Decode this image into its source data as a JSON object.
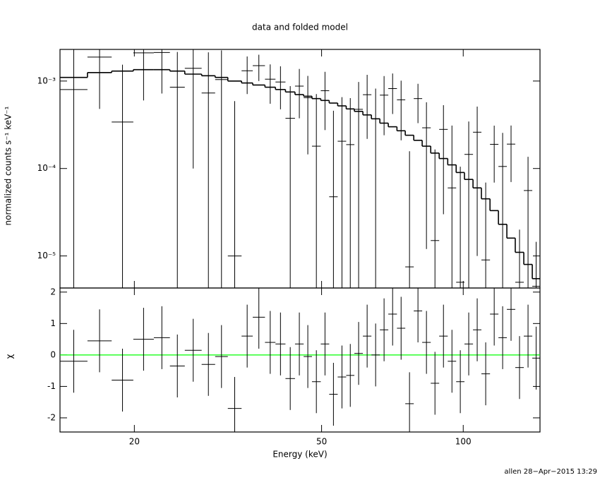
{
  "chart_data": {
    "type": "spectrum",
    "title": "data and folded model",
    "xlabel": "Energy (keV)",
    "xscale": "log",
    "xlim": [
      13.9,
      145.6
    ],
    "xticks": [
      20,
      50,
      100
    ],
    "bins": [
      13.9,
      15.9,
      17.9,
      19.9,
      22.0,
      23.8,
      25.6,
      27.8,
      29.7,
      31.6,
      33.8,
      35.7,
      37.9,
      39.9,
      41.9,
      43.9,
      45.8,
      47.7,
      49.8,
      51.9,
      54.1,
      56.4,
      58.7,
      61.2,
      63.8,
      66.5,
      69.3,
      72.3,
      75.3,
      78.5,
      81.8,
      85.3,
      88.9,
      92.7,
      96.6,
      100.6,
      104.9,
      109.3,
      114.0,
      118.8,
      123.8,
      129.0,
      134.5,
      140.2,
      145.6
    ],
    "top": {
      "ylabel": "normalized counts s⁻¹ keV⁻¹",
      "yscale": "log",
      "ylim": [
        4.3e-06,
        0.0023
      ],
      "yticks": [
        {
          "value": 0.001,
          "label": "10⁻³"
        },
        {
          "value": 0.0001,
          "label": "10⁻⁴"
        },
        {
          "value": 1e-05,
          "label": "10⁻⁵"
        }
      ],
      "rate": [
        0.0008,
        0.00188,
        0.00034,
        0.0021,
        0.00212,
        0.00085,
        0.0014,
        0.00073,
        0.00104,
        1e-05,
        0.00131,
        0.0015,
        0.00105,
        0.000975,
        0.000375,
        0.000875,
        0.000645,
        0.00018,
        0.000775,
        4.75e-05,
        0.000205,
        0.0001875,
        0.000475,
        0.000698,
        0.00037,
        0.00069,
        0.00082,
        0.00061,
        7.5e-06,
        0.00063,
        0.000292,
        1.5e-05,
        0.00028,
        6e-05,
        5e-06,
        0.000145,
        0.00026,
        9e-06,
        0.000189,
        0.0001055,
        0.00019,
        5e-06,
        5.6e-05,
        4.5e-06
      ],
      "rate_err": [
        0.0015,
        0.0014,
        0.0012,
        0.0015,
        0.0014,
        0.0013,
        0.0013,
        0.0014,
        0.0012,
        0.00058,
        0.0006,
        0.0005,
        0.0005,
        0.0005,
        0.0005,
        0.0005,
        0.0005,
        0.00053,
        0.0005,
        0.00041,
        0.00045,
        0.00045,
        0.0005,
        0.00048,
        0.00045,
        0.00045,
        0.0004,
        0.0004,
        0.00015,
        0.0003,
        0.00028,
        0.00015,
        0.00025,
        0.00025,
        0.0001,
        0.0002,
        0.00025,
        6e-05,
        0.00012,
        0.00015,
        0.00012,
        1.5e-05,
        8e-05,
        1e-05
      ],
      "model": [
        0.0011,
        0.00125,
        0.0013,
        0.00135,
        0.00135,
        0.0013,
        0.0012,
        0.00115,
        0.0011,
        0.001,
        0.00095,
        0.0009,
        0.00085,
        0.0008,
        0.00075,
        0.0007,
        0.00067,
        0.00063,
        0.0006,
        0.00056,
        0.00052,
        0.00048,
        0.00045,
        0.00041,
        0.00037,
        0.00033,
        0.0003,
        0.00027,
        0.00024,
        0.00021,
        0.00018,
        0.00015,
        0.00013,
        0.00011,
        9e-05,
        7.5e-05,
        6e-05,
        4.5e-05,
        3.3e-05,
        2.3e-05,
        1.6e-05,
        1.1e-05,
        8e-06,
        5.5e-06
      ]
    },
    "bottom": {
      "ylabel": "χ",
      "ylim": [
        -2.45,
        2.13
      ],
      "yticks": [
        -2,
        -1,
        0,
        1,
        2
      ],
      "chi": [
        -0.2,
        0.45,
        -0.8,
        0.5,
        0.55,
        -0.35,
        0.15,
        -0.3,
        -0.05,
        -1.7,
        0.6,
        1.2,
        0.4,
        0.35,
        -0.75,
        0.35,
        -0.05,
        -0.85,
        0.35,
        -1.25,
        -0.7,
        -0.65,
        0.05,
        0.6,
        0.0,
        0.8,
        1.3,
        0.85,
        -1.55,
        1.4,
        0.4,
        -0.9,
        0.6,
        -0.2,
        -0.85,
        0.35,
        0.8,
        -0.6,
        1.3,
        0.55,
        1.45,
        -0.4,
        0.6,
        -0.1
      ],
      "chi_err": 1,
      "zero_line": 0,
      "zero_color": "#00ff00"
    }
  },
  "footer": "allen 28−Apr−2015 13:29"
}
